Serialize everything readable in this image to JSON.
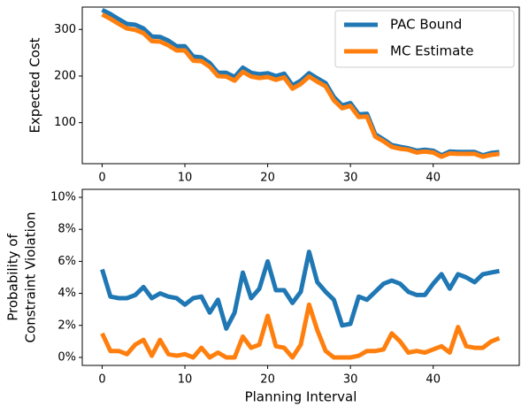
{
  "chart_data": [
    {
      "type": "line",
      "ylabel": "Expected Cost",
      "x": [
        0,
        1,
        2,
        3,
        4,
        5,
        6,
        7,
        8,
        9,
        10,
        11,
        12,
        13,
        14,
        15,
        16,
        17,
        18,
        19,
        20,
        21,
        22,
        23,
        24,
        25,
        26,
        27,
        28,
        29,
        30,
        31,
        32,
        33,
        34,
        35,
        36,
        37,
        38,
        39,
        40,
        41,
        42,
        43,
        44,
        45,
        46,
        47,
        48
      ],
      "series": [
        {
          "name": "PAC Bound",
          "color": "#1f77b4",
          "values": [
            342,
            333,
            322,
            312,
            310,
            302,
            285,
            284,
            276,
            264,
            264,
            242,
            240,
            228,
            207,
            207,
            198,
            218,
            207,
            204,
            206,
            200,
            205,
            180,
            190,
            206,
            195,
            185,
            155,
            137,
            142,
            118,
            119,
            75,
            64,
            52,
            48,
            45,
            40,
            42,
            40,
            30,
            38,
            37,
            37,
            37,
            30,
            35,
            37
          ]
        },
        {
          "name": "MC Estimate",
          "color": "#ff7f0e",
          "values": [
            332,
            323,
            312,
            302,
            299,
            292,
            275,
            274,
            266,
            255,
            255,
            233,
            232,
            220,
            200,
            199,
            190,
            209,
            199,
            196,
            198,
            192,
            197,
            173,
            183,
            199,
            188,
            178,
            148,
            131,
            136,
            112,
            113,
            70,
            60,
            48,
            44,
            42,
            36,
            38,
            36,
            27,
            34,
            33,
            33,
            33,
            27,
            31,
            33
          ]
        }
      ],
      "xlim": [
        -2.4,
        50.4
      ],
      "xticks": [
        0,
        10,
        20,
        30,
        40
      ],
      "ylim": [
        12,
        348
      ],
      "yticks": [
        100,
        200,
        300
      ],
      "legend": "upper right"
    },
    {
      "type": "line",
      "xlabel": "Planning Interval",
      "ylabel": [
        "Probability of",
        "Constraint Violation"
      ],
      "x": [
        0,
        1,
        2,
        3,
        4,
        5,
        6,
        7,
        8,
        9,
        10,
        11,
        12,
        13,
        14,
        15,
        16,
        17,
        18,
        19,
        20,
        21,
        22,
        23,
        24,
        25,
        26,
        27,
        28,
        29,
        30,
        31,
        32,
        33,
        34,
        35,
        36,
        37,
        38,
        39,
        40,
        41,
        42,
        43,
        44,
        45,
        46,
        47,
        48
      ],
      "series": [
        {
          "color": "#1f77b4",
          "values": [
            5.5,
            3.8,
            3.7,
            3.7,
            3.9,
            4.4,
            3.7,
            4.0,
            3.8,
            3.7,
            3.3,
            3.7,
            3.8,
            2.8,
            3.6,
            1.8,
            2.8,
            5.3,
            3.7,
            4.3,
            6.0,
            4.2,
            4.2,
            3.4,
            4.1,
            6.6,
            4.7,
            4.1,
            3.6,
            2.0,
            2.1,
            3.8,
            3.6,
            4.1,
            4.6,
            4.8,
            4.6,
            4.1,
            3.9,
            3.9,
            4.6,
            5.2,
            4.3,
            5.2,
            5.0,
            4.7,
            5.2,
            5.3,
            5.4
          ]
        },
        {
          "color": "#ff7f0e",
          "values": [
            1.5,
            0.4,
            0.4,
            0.2,
            0.8,
            1.1,
            0.1,
            1.1,
            0.2,
            0.1,
            0.2,
            0,
            0.6,
            0,
            0.3,
            0,
            0,
            1.3,
            0.6,
            0.8,
            2.6,
            0.7,
            0.6,
            0,
            0.8,
            3.3,
            1.7,
            0.4,
            0,
            0,
            0,
            0.1,
            0.4,
            0.4,
            0.5,
            1.5,
            1.0,
            0.3,
            0.4,
            0.3,
            0.5,
            0.7,
            0.3,
            1.9,
            0.7,
            0.6,
            0.6,
            1.0,
            1.2
          ]
        }
      ],
      "xlim": [
        -2.4,
        50.4
      ],
      "xticks": [
        0,
        10,
        20,
        30,
        40
      ],
      "ylim": [
        -0.5,
        10.5
      ],
      "yticks": [
        {
          "value": 0,
          "label": "0%"
        },
        {
          "value": 2,
          "label": "2%"
        },
        {
          "value": 4,
          "label": "4%"
        },
        {
          "value": 6,
          "label": "6%"
        },
        {
          "value": 8,
          "label": "8%"
        },
        {
          "value": 10,
          "label": "10%"
        }
      ]
    }
  ]
}
